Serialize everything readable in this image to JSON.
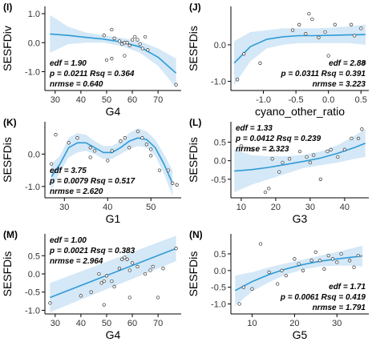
{
  "style": {
    "line_color": "#2e9bd6",
    "band_color": "#cfe6f6",
    "point_stroke": "#333333"
  },
  "chart_data": [
    {
      "id": "I",
      "tag": "(I)",
      "type": "scatter",
      "xlabel": "G4",
      "ylabel": "SESFDiv",
      "xlim": [
        26,
        79
      ],
      "ylim": [
        -1.65,
        1.25
      ],
      "xticks": [
        30,
        40,
        50,
        60,
        70
      ],
      "xticklabels": [
        "30",
        "40",
        "50",
        "60",
        "70"
      ],
      "yticks": [
        -1.0,
        0.0,
        1.0
      ],
      "yticklabels": [
        "-1.0",
        "0.0",
        "1.0"
      ],
      "stats": [
        "edf = 1.90",
        "p = 0.0211  Rsq = 0.364",
        "nrmse = 0.640"
      ],
      "stats_pos": "bottom-left",
      "points": [
        [
          49,
          0.25
        ],
        [
          52,
          0.45
        ],
        [
          53,
          0.15
        ],
        [
          55,
          0.05
        ],
        [
          56,
          -0.05
        ],
        [
          57,
          0.0
        ],
        [
          58,
          0.0
        ],
        [
          59,
          -0.1
        ],
        [
          60,
          0.1
        ],
        [
          61,
          0.2
        ],
        [
          62,
          0.1
        ],
        [
          63,
          -0.05
        ],
        [
          64,
          -0.2
        ],
        [
          65,
          0.2
        ],
        [
          66,
          -0.25
        ],
        [
          50,
          -0.6
        ],
        [
          52,
          -0.55
        ],
        [
          57,
          -0.45
        ],
        [
          77,
          -1.45
        ]
      ],
      "fit_x": [
        28,
        35,
        42,
        49,
        56,
        63,
        70,
        77
      ],
      "fit_y": [
        0.3,
        0.25,
        0.18,
        0.12,
        0.02,
        -0.15,
        -0.5,
        -1.05
      ],
      "band_lower": [
        -0.35,
        -0.05,
        0.0,
        0.0,
        -0.12,
        -0.35,
        -0.8,
        -1.55
      ],
      "band_upper": [
        0.95,
        0.55,
        0.35,
        0.25,
        0.16,
        0.05,
        -0.2,
        -0.55
      ]
    },
    {
      "id": "J",
      "tag": "(J)",
      "type": "scatter",
      "xlabel": "cyano_other_ratio",
      "ylabel": "SESFDis",
      "xlim": [
        -1.5,
        0.62
      ],
      "ylim": [
        -1.25,
        1.05
      ],
      "xticks": [
        -1.0,
        -0.5,
        0.0,
        0.5
      ],
      "xticklabels": [
        "-1.0",
        "-0.5",
        "0.0",
        "0.5"
      ],
      "yticks": [
        -1.0,
        0.0
      ],
      "yticklabels": [
        "-1.0",
        "0.0"
      ],
      "stats": [
        "edf = 2.88",
        "p = 0.0311  Rsq = 0.391",
        "nrmse = 3.223"
      ],
      "stats_pos": "bottom-right",
      "points": [
        [
          -1.4,
          -0.95
        ],
        [
          -1.3,
          -0.25
        ],
        [
          -1.05,
          -0.5
        ],
        [
          -0.55,
          0.4
        ],
        [
          -0.45,
          0.55
        ],
        [
          -0.35,
          0.3
        ],
        [
          -0.3,
          0.85
        ],
        [
          -0.25,
          0.7
        ],
        [
          -0.15,
          0.2
        ],
        [
          -0.05,
          0.35
        ],
        [
          0.0,
          -0.3
        ],
        [
          0.1,
          0.55
        ],
        [
          0.35,
          0.55
        ],
        [
          0.4,
          0.25
        ],
        [
          0.5,
          0.45
        ],
        [
          0.55,
          -0.5
        ]
      ],
      "fit_x": [
        -1.45,
        -1.2,
        -0.95,
        -0.7,
        -0.45,
        -0.2,
        0.05,
        0.3,
        0.57
      ],
      "fit_y": [
        -0.5,
        -0.05,
        0.15,
        0.22,
        0.25,
        0.25,
        0.26,
        0.27,
        0.28
      ],
      "band_lower": [
        -1.1,
        -0.45,
        -0.1,
        0.0,
        0.05,
        0.05,
        0.05,
        0.05,
        0.0
      ],
      "band_upper": [
        0.1,
        0.35,
        0.4,
        0.45,
        0.45,
        0.45,
        0.47,
        0.5,
        0.55
      ]
    },
    {
      "id": "K",
      "tag": "(K)",
      "type": "scatter",
      "xlabel": "G1",
      "ylabel": "SESFDis",
      "xlim": [
        25.5,
        57
      ],
      "ylim": [
        -1.35,
        1.0
      ],
      "xticks": [
        30,
        40,
        50
      ],
      "xticklabels": [
        "30",
        "40",
        "50"
      ],
      "yticks": [
        -1.0,
        0.0
      ],
      "yticklabels": [
        "-1.0",
        "0.0"
      ],
      "stats": [
        "edf = 3.75",
        "p = 0.0079  Rsq = 0.517",
        "nrmse = 2.620"
      ],
      "stats_pos": "bottom-left",
      "points": [
        [
          27,
          -0.3
        ],
        [
          28,
          0.6
        ],
        [
          31,
          0.35
        ],
        [
          33,
          0.5
        ],
        [
          36,
          0.2
        ],
        [
          36,
          -0.1
        ],
        [
          37,
          0.1
        ],
        [
          40,
          -0.2
        ],
        [
          41,
          0.1
        ],
        [
          43,
          0.4
        ],
        [
          44,
          0.5
        ],
        [
          45,
          0.2
        ],
        [
          47,
          0.7
        ],
        [
          48,
          0.5
        ],
        [
          49,
          0.3
        ],
        [
          50,
          -0.05
        ],
        [
          52,
          -0.5
        ],
        [
          54,
          -0.5
        ],
        [
          55,
          -0.9
        ],
        [
          56,
          -0.95
        ],
        [
          50,
          0.15
        ]
      ],
      "fit_x": [
        27,
        29,
        31,
        33,
        35,
        37,
        39,
        41,
        43,
        45,
        47,
        49,
        51,
        53,
        55
      ],
      "fit_y": [
        -0.7,
        -0.3,
        0.2,
        0.35,
        0.35,
        0.2,
        0.05,
        0.05,
        0.2,
        0.4,
        0.5,
        0.45,
        0.2,
        -0.3,
        -0.9
      ],
      "band_lower": [
        -1.1,
        -0.55,
        -0.1,
        0.05,
        0.1,
        0.0,
        -0.15,
        -0.15,
        0.0,
        0.15,
        0.25,
        0.2,
        -0.05,
        -0.6,
        -1.3
      ],
      "band_upper": [
        -0.3,
        -0.05,
        0.5,
        0.65,
        0.6,
        0.4,
        0.25,
        0.25,
        0.4,
        0.65,
        0.8,
        0.7,
        0.45,
        0.0,
        -0.5
      ]
    },
    {
      "id": "L",
      "tag": "(L)",
      "type": "scatter",
      "xlabel": "G3",
      "ylabel": "SESFDis",
      "xlim": [
        7,
        47
      ],
      "ylim": [
        -1.0,
        1.05
      ],
      "xticks": [
        10,
        20,
        30,
        40
      ],
      "xticklabels": [
        "10",
        "20",
        "30",
        "40"
      ],
      "yticks": [
        -0.5,
        0.0,
        0.5
      ],
      "yticklabels": [
        "-0.5",
        "0.0",
        "0.5"
      ],
      "stats": [
        "edf = 1.33",
        "p = 0.0412  Rsq = 0.239",
        "nrmse = 2.323"
      ],
      "stats_pos": "top-left",
      "points": [
        [
          10,
          0.4
        ],
        [
          13,
          0.3
        ],
        [
          17,
          -0.85
        ],
        [
          18,
          -0.75
        ],
        [
          19,
          0.05
        ],
        [
          21,
          -0.3
        ],
        [
          22,
          -0.05
        ],
        [
          24,
          0.05
        ],
        [
          27,
          0.25
        ],
        [
          29,
          0.1
        ],
        [
          30,
          -0.05
        ],
        [
          31,
          0.15
        ],
        [
          33,
          -0.5
        ],
        [
          35,
          0.25
        ],
        [
          36,
          0.3
        ],
        [
          38,
          0.1
        ],
        [
          40,
          0.3
        ],
        [
          42,
          0.6
        ],
        [
          44,
          0.6
        ],
        [
          45,
          0.85
        ],
        [
          19,
          0.3
        ]
      ],
      "fit_x": [
        8,
        13,
        18,
        23,
        28,
        33,
        38,
        43,
        46
      ],
      "fit_y": [
        -0.28,
        -0.24,
        -0.18,
        -0.1,
        -0.02,
        0.07,
        0.2,
        0.36,
        0.47
      ],
      "band_lower": [
        -0.85,
        -0.65,
        -0.5,
        -0.35,
        -0.2,
        -0.12,
        -0.05,
        0.05,
        0.1
      ],
      "band_upper": [
        0.3,
        0.15,
        0.12,
        0.12,
        0.16,
        0.25,
        0.42,
        0.68,
        0.85
      ]
    },
    {
      "id": "M",
      "tag": "(M)",
      "type": "scatter",
      "xlabel": "G4",
      "ylabel": "SESFDis",
      "xlim": [
        26,
        79
      ],
      "ylim": [
        -1.1,
        1.1
      ],
      "xticks": [
        30,
        40,
        50,
        60,
        70
      ],
      "xticklabels": [
        "30",
        "40",
        "50",
        "60",
        "70"
      ],
      "yticks": [
        -1.0,
        -0.5,
        0.0,
        0.5
      ],
      "yticklabels": [
        "-1.0",
        "-0.5",
        "0.0",
        "0.5"
      ],
      "stats": [
        "edf = 1.00",
        "p = 0.0021  Rsq = 0.383",
        "nrmse = 2.964"
      ],
      "stats_pos": "top-left",
      "points": [
        [
          28,
          -0.8
        ],
        [
          40,
          -0.6
        ],
        [
          44,
          -0.5
        ],
        [
          47,
          0.0
        ],
        [
          48,
          -0.25
        ],
        [
          49,
          -0.2
        ],
        [
          50,
          -0.05
        ],
        [
          52,
          -0.2
        ],
        [
          53,
          -0.35
        ],
        [
          55,
          0.15
        ],
        [
          56,
          0.4
        ],
        [
          57,
          0.45
        ],
        [
          58,
          0.4
        ],
        [
          59,
          0.1
        ],
        [
          60,
          0.3
        ],
        [
          62,
          0.2
        ],
        [
          65,
          0.0
        ],
        [
          67,
          0.1
        ],
        [
          68,
          0.2
        ],
        [
          72,
          0.15
        ],
        [
          77,
          0.7
        ],
        [
          59,
          -0.65
        ],
        [
          49,
          -0.85
        ],
        [
          70,
          -0.65
        ]
      ],
      "fit_x": [
        28,
        77
      ],
      "fit_y": [
        -0.65,
        0.7
      ],
      "band_lower": [
        -1.05,
        0.35
      ],
      "band_upper": [
        -0.25,
        1.05
      ]
    },
    {
      "id": "N",
      "tag": "(N)",
      "type": "scatter",
      "xlabel": "G5",
      "ylabel": "SESFDis",
      "xlim": [
        5,
        37.5
      ],
      "ylim": [
        -1.3,
        1.1
      ],
      "xticks": [
        10,
        20,
        30
      ],
      "xticklabels": [
        "10",
        "20",
        "30"
      ],
      "yticks": [
        -1.0,
        -0.5,
        0.0,
        0.5
      ],
      "yticklabels": [
        "-1.0",
        "-0.5",
        "0.0",
        "0.5"
      ],
      "stats": [
        "edf = 1.71",
        "p = 0.0061  Rsq = 0.419",
        "nrmse = 1.791"
      ],
      "stats_pos": "bottom-right",
      "points": [
        [
          7,
          -1.0
        ],
        [
          8,
          -0.5
        ],
        [
          10,
          -0.55
        ],
        [
          12,
          0.8
        ],
        [
          14,
          -0.05
        ],
        [
          16,
          -0.4
        ],
        [
          17,
          0.0
        ],
        [
          18,
          -0.15
        ],
        [
          20,
          0.35
        ],
        [
          21,
          0.2
        ],
        [
          22,
          0.0
        ],
        [
          24,
          0.3
        ],
        [
          25,
          0.55
        ],
        [
          26,
          0.3
        ],
        [
          27,
          0.05
        ],
        [
          28,
          0.45
        ],
        [
          29,
          0.35
        ],
        [
          30,
          0.25
        ],
        [
          31,
          0.5
        ],
        [
          33,
          0.3
        ],
        [
          34,
          0.1
        ],
        [
          35,
          0.45
        ]
      ],
      "fit_x": [
        6,
        10,
        14,
        18,
        22,
        26,
        30,
        34,
        36
      ],
      "fit_y": [
        -0.6,
        -0.33,
        -0.12,
        0.05,
        0.18,
        0.28,
        0.35,
        0.41,
        0.44
      ],
      "band_lower": [
        -1.05,
        -0.62,
        -0.35,
        -0.12,
        0.03,
        0.12,
        0.15,
        0.15,
        0.12
      ],
      "band_upper": [
        -0.15,
        -0.05,
        0.1,
        0.22,
        0.33,
        0.45,
        0.56,
        0.68,
        0.75
      ]
    }
  ]
}
